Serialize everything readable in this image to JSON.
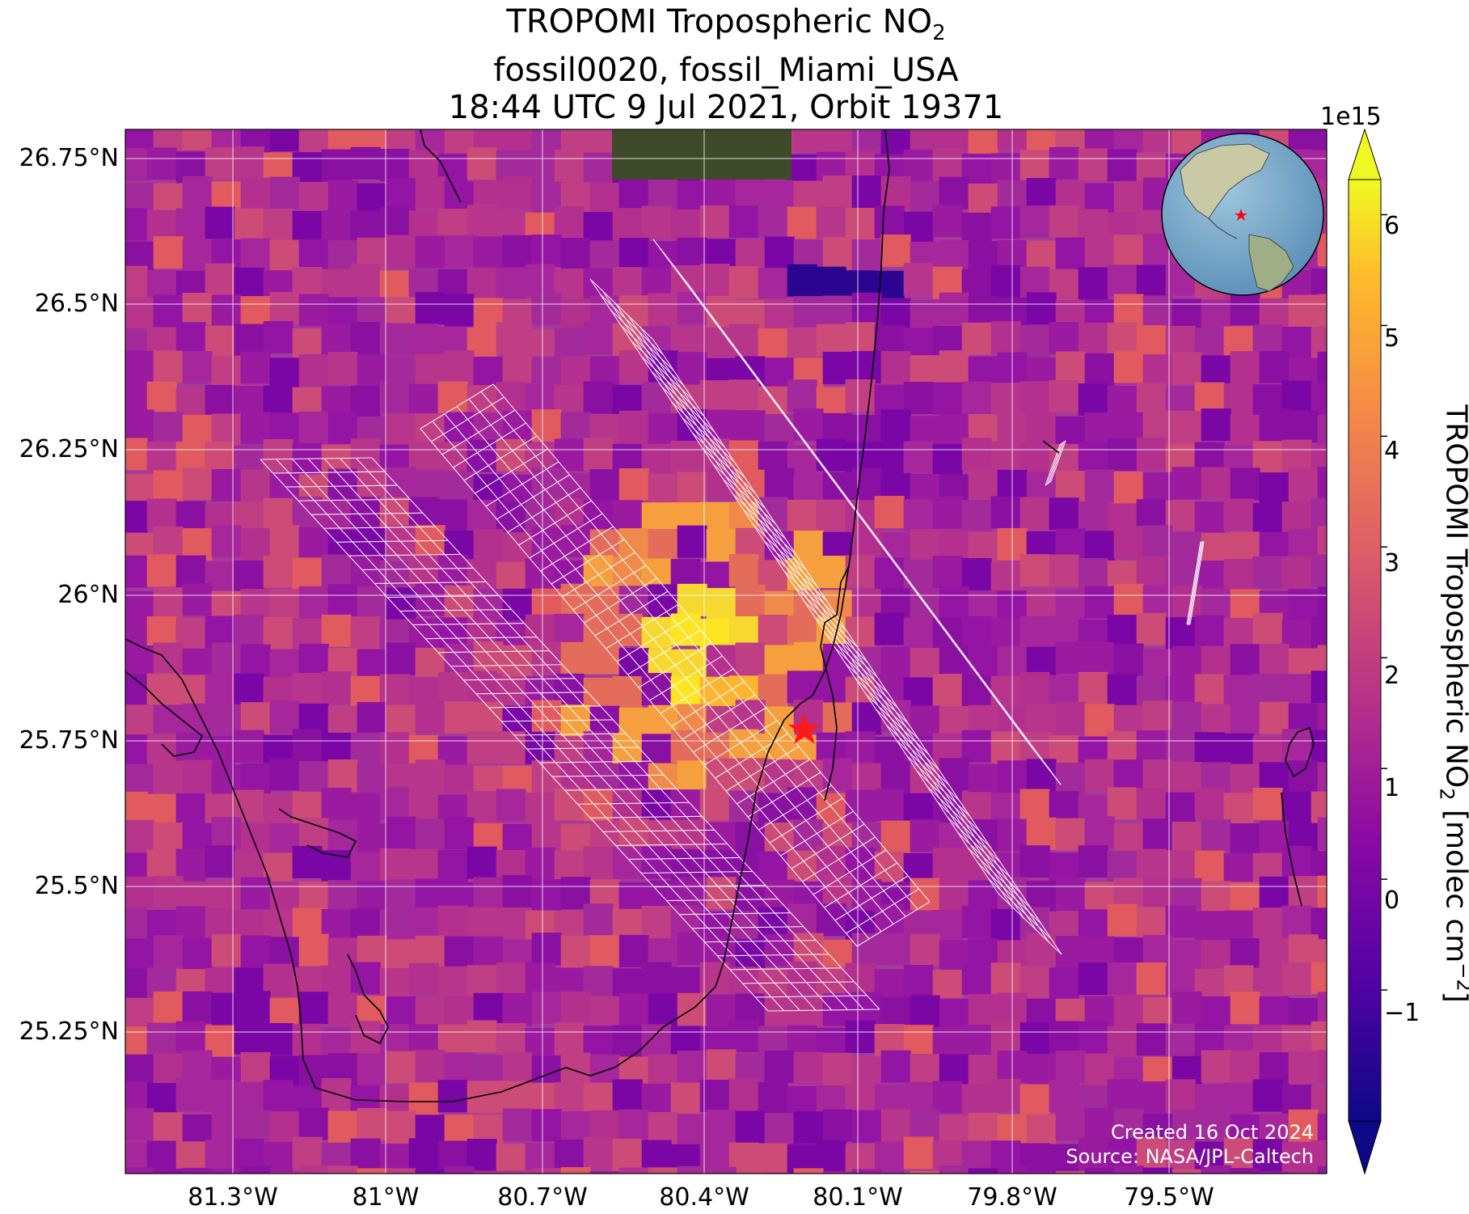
{
  "title": {
    "line1_prefix": "TROPOMI Tropospheric NO",
    "line1_sub": "2",
    "line2": "fossil0020, fossil_Miami_USA",
    "line3": "18:44 UTC 9 Jul 2021, Orbit 19371"
  },
  "map": {
    "lat_ticks": [
      "26.75°N",
      "26.5°N",
      "26.25°N",
      "26°N",
      "25.75°N",
      "25.5°N",
      "25.25°N"
    ],
    "lon_ticks": [
      "81.3°W",
      "81°W",
      "80.7°W",
      "80.4°W",
      "80.1°W",
      "79.8°W",
      "79.5°W"
    ],
    "target_marker": "red-star",
    "target_color": "#ff0000",
    "inset": "globe-locator"
  },
  "colorbar": {
    "colormap": "plasma",
    "exponent": "1e15",
    "ticks": [
      "6",
      "5",
      "4",
      "3",
      "2",
      "1",
      "0",
      "−1"
    ],
    "tick_values": [
      6,
      5,
      4,
      3,
      2,
      1,
      0,
      -1
    ],
    "range": [
      -2,
      6.5
    ],
    "label_prefix": "TROPOMI Tropospheric NO",
    "label_sub": "2",
    "label_mid": " [molec cm",
    "label_sup": "−2",
    "label_end": "]"
  },
  "credits": {
    "created": "Created 16 Oct 2024",
    "source": "Source: NASA/JPL-Caltech"
  }
}
